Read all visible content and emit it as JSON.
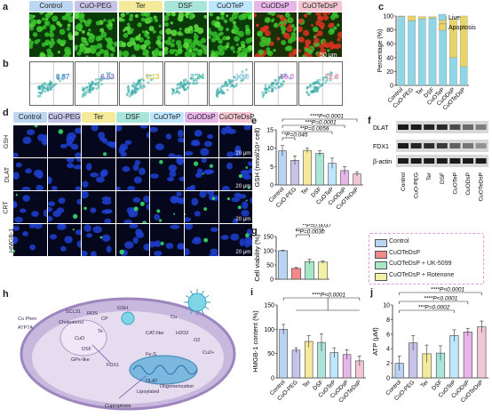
{
  "panels": {
    "a": "a",
    "b": "b",
    "c": "c",
    "d": "d",
    "e": "e",
    "f": "f",
    "g": "g",
    "h": "h",
    "i": "i",
    "j": "j"
  },
  "groups": [
    "Control",
    "CuO-PEG",
    "Ter",
    "DSF",
    "CuOTeP",
    "CuODsP",
    "CuOTeDsP"
  ],
  "group_colors": [
    "#bcd7f2",
    "#c6c3e8",
    "#f5ea9c",
    "#a9e6d9",
    "#bfe6ff",
    "#e8b6e8",
    "#f2c6d2"
  ],
  "panel_a": {
    "scale_bar": "50 μm"
  },
  "panel_b": {
    "values": [
      "0.87",
      "6.63",
      "3.13",
      "2.24",
      "10.8",
      "56.0",
      "72.8"
    ],
    "value_colors": [
      "#5a8fd6",
      "#7a79c9",
      "#e2c84c",
      "#44b9a3",
      "#8fcbe6",
      "#d77ad6",
      "#e48aa5"
    ]
  },
  "panel_d": {
    "rows": [
      "GSH",
      "DLAT",
      "CRT",
      "HMGB-1"
    ],
    "scale_bar": "20 μm"
  },
  "panel_f": {
    "bands": [
      "DLAT",
      "FDX1",
      "β-actin"
    ]
  },
  "panel_g_legend": [
    {
      "label": "Control",
      "color": "#b9d3f2"
    },
    {
      "label": "CuOTeDsP",
      "color": "#f08a8a"
    },
    {
      "label": "CuOTeDsP + UK-5099",
      "color": "#a8e6c8"
    },
    {
      "label": "CuOTeDsP + Rotenone",
      "color": "#f2f0a6"
    }
  ],
  "panel_h": {
    "labels": [
      "SCL31",
      "Cu Phen",
      "ATP7A",
      "ROS",
      "GSH",
      "CP",
      "Cholesterol",
      "Cu",
      "CuO",
      "DSF",
      "Te",
      "FDX1",
      "Fe-S",
      "DLAT",
      "Oligomerization",
      "Cuproptosis",
      "Lipoylated",
      "O2",
      "H2O2",
      "CAT-like",
      "GPx-like",
      "Cu2+"
    ]
  },
  "chart_data": [
    {
      "id": "c",
      "type": "bar",
      "ylabel": "Percentage (%)",
      "ylim": [
        0,
        100
      ],
      "yticks": [
        0,
        20,
        40,
        60,
        80,
        100
      ],
      "categories": [
        "Control",
        "CuO-PEG",
        "Ter",
        "DSF",
        "CuOTeP",
        "CuODsP",
        "CuOTeDsP"
      ],
      "series": [
        {
          "name": "Live",
          "color": "#8fd6e6",
          "values": [
            99,
            93,
            96,
            97,
            89,
            40,
            27
          ]
        },
        {
          "name": "Apoptosis",
          "color": "#e8d56a",
          "values": [
            1,
            7,
            3,
            2,
            11,
            56,
            73
          ]
        }
      ]
    },
    {
      "id": "e",
      "type": "bar",
      "ylabel": "GSH (nmol/10⁴ cell)",
      "ylim": [
        0,
        15
      ],
      "yticks": [
        0,
        5,
        10,
        15
      ],
      "categories": [
        "Control",
        "CuO-PEG",
        "Ter",
        "DSF",
        "CuOTeP",
        "CuODsP",
        "CuOTeDsP"
      ],
      "values": [
        9.3,
        6.7,
        9.4,
        8.6,
        5.9,
        3.9,
        3.0
      ],
      "errors": [
        1.4,
        1.2,
        0.6,
        0.7,
        1.4,
        1.1,
        0.6
      ],
      "annotations": [
        "****P<0.0001",
        "***P=0.0001",
        "**P=0.0056",
        "*P=0.045"
      ]
    },
    {
      "id": "g",
      "type": "bar",
      "ylabel": "Cell viability (%)",
      "ylim": [
        0,
        150
      ],
      "yticks": [
        0,
        50,
        100,
        150
      ],
      "categories": [
        "Control",
        "CuOTeDsP",
        "CuOTeDsP + UK-5099",
        "CuOTeDsP + Rotenone"
      ],
      "values": [
        100,
        38,
        62,
        60
      ],
      "errors": [
        2,
        3,
        8,
        5
      ],
      "annotations": [
        "**P=0.0037",
        "**P=0.0030"
      ]
    },
    {
      "id": "i",
      "type": "bar",
      "ylabel": "HMGB-1 content (%)",
      "ylim": [
        0,
        150
      ],
      "yticks": [
        0,
        50,
        100,
        150
      ],
      "categories": [
        "Control",
        "CuO-PEG",
        "Ter",
        "DSF",
        "CuOTeP",
        "CuODsP",
        "CuOTeDsP"
      ],
      "values": [
        100,
        57,
        75,
        73,
        52,
        48,
        35
      ],
      "errors": [
        10,
        5,
        12,
        18,
        10,
        10,
        10
      ],
      "annotations": [
        "****P<0.0001"
      ]
    },
    {
      "id": "j",
      "type": "bar",
      "ylabel": "ATP (μM)",
      "ylim": [
        0,
        10
      ],
      "yticks": [
        0,
        2,
        4,
        6,
        8,
        10
      ],
      "categories": [
        "Control",
        "CuO-PEG",
        "Ter",
        "DSF",
        "CuOTeP",
        "CuODsP",
        "CuOTeDsP"
      ],
      "values": [
        2.0,
        4.8,
        3.3,
        3.4,
        5.8,
        6.3,
        7.0
      ],
      "errors": [
        1.0,
        1.0,
        1.2,
        1.0,
        0.8,
        0.5,
        0.8
      ],
      "annotations": [
        "****P<0.0001",
        "****P<0.0001",
        "***P=0.0002"
      ]
    }
  ]
}
